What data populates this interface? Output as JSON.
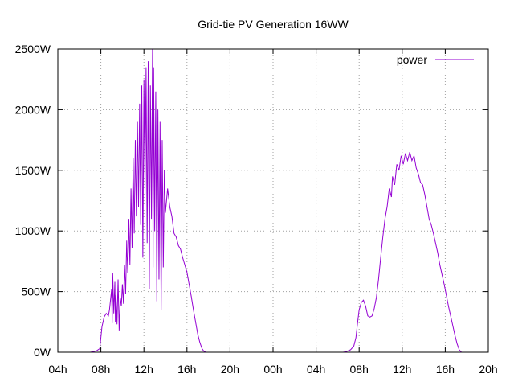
{
  "chart_data": {
    "type": "line",
    "title": "Grid-tie PV Generation 16WW",
    "xlabel": "",
    "ylabel": "",
    "x_unit": "hours",
    "xlim": [
      4,
      44
    ],
    "ylim": [
      0,
      2500
    ],
    "grid": true,
    "legend_position": "top-right",
    "color": "#9400d3",
    "x_ticks": [
      {
        "value": 4,
        "label": "04h"
      },
      {
        "value": 8,
        "label": "08h"
      },
      {
        "value": 12,
        "label": "12h"
      },
      {
        "value": 16,
        "label": "16h"
      },
      {
        "value": 20,
        "label": "20h"
      },
      {
        "value": 24,
        "label": "00h"
      },
      {
        "value": 28,
        "label": "04h"
      },
      {
        "value": 32,
        "label": "08h"
      },
      {
        "value": 36,
        "label": "12h"
      },
      {
        "value": 40,
        "label": "16h"
      },
      {
        "value": 44,
        "label": "20h"
      }
    ],
    "y_ticks": [
      {
        "value": 0,
        "label": "0W"
      },
      {
        "value": 500,
        "label": "500W"
      },
      {
        "value": 1000,
        "label": "1000W"
      },
      {
        "value": 1500,
        "label": "1500W"
      },
      {
        "value": 2000,
        "label": "2000W"
      },
      {
        "value": 2500,
        "label": "2500W"
      }
    ],
    "series": [
      {
        "name": "power",
        "points": [
          [
            7.0,
            0
          ],
          [
            7.3,
            5
          ],
          [
            7.6,
            12
          ],
          [
            7.9,
            30
          ],
          [
            8.0,
            120
          ],
          [
            8.1,
            210
          ],
          [
            8.2,
            250
          ],
          [
            8.3,
            290
          ],
          [
            8.5,
            320
          ],
          [
            8.7,
            300
          ],
          [
            8.8,
            350
          ],
          [
            9.0,
            520
          ],
          [
            9.05,
            240
          ],
          [
            9.1,
            650
          ],
          [
            9.2,
            320
          ],
          [
            9.3,
            580
          ],
          [
            9.35,
            250
          ],
          [
            9.4,
            470
          ],
          [
            9.5,
            230
          ],
          [
            9.6,
            600
          ],
          [
            9.7,
            180
          ],
          [
            9.8,
            450
          ],
          [
            9.9,
            380
          ],
          [
            10.0,
            560
          ],
          [
            10.1,
            400
          ],
          [
            10.2,
            720
          ],
          [
            10.3,
            480
          ],
          [
            10.4,
            920
          ],
          [
            10.5,
            650
          ],
          [
            10.6,
            1100
          ],
          [
            10.7,
            720
          ],
          [
            10.8,
            1350
          ],
          [
            10.9,
            860
          ],
          [
            11.0,
            1600
          ],
          [
            11.1,
            980
          ],
          [
            11.2,
            1750
          ],
          [
            11.3,
            1120
          ],
          [
            11.4,
            1900
          ],
          [
            11.5,
            1200
          ],
          [
            11.6,
            2050
          ],
          [
            11.7,
            1050
          ],
          [
            11.8,
            2200
          ],
          [
            11.9,
            780
          ],
          [
            12.0,
            2250
          ],
          [
            12.1,
            1300
          ],
          [
            12.2,
            2350
          ],
          [
            12.3,
            900
          ],
          [
            12.4,
            2400
          ],
          [
            12.5,
            520
          ],
          [
            12.6,
            2200
          ],
          [
            12.7,
            1100
          ],
          [
            12.8,
            2500
          ],
          [
            12.85,
            700
          ],
          [
            12.9,
            2350
          ],
          [
            13.0,
            1000
          ],
          [
            13.1,
            2150
          ],
          [
            13.2,
            420
          ],
          [
            13.3,
            2000
          ],
          [
            13.4,
            600
          ],
          [
            13.5,
            1900
          ],
          [
            13.6,
            350
          ],
          [
            13.7,
            1750
          ],
          [
            13.8,
            700
          ],
          [
            13.9,
            1500
          ],
          [
            14.0,
            1150
          ],
          [
            14.2,
            1350
          ],
          [
            14.4,
            1200
          ],
          [
            14.6,
            1120
          ],
          [
            14.8,
            980
          ],
          [
            15.0,
            950
          ],
          [
            15.2,
            880
          ],
          [
            15.4,
            850
          ],
          [
            15.6,
            780
          ],
          [
            15.8,
            720
          ],
          [
            16.0,
            660
          ],
          [
            16.2,
            560
          ],
          [
            16.4,
            460
          ],
          [
            16.6,
            350
          ],
          [
            16.8,
            250
          ],
          [
            17.0,
            150
          ],
          [
            17.2,
            80
          ],
          [
            17.4,
            30
          ],
          [
            17.6,
            5
          ],
          [
            17.8,
            0
          ],
          [
            30.5,
            0
          ],
          [
            30.8,
            5
          ],
          [
            31.2,
            20
          ],
          [
            31.5,
            50
          ],
          [
            31.7,
            120
          ],
          [
            31.85,
            240
          ],
          [
            32.0,
            350
          ],
          [
            32.2,
            410
          ],
          [
            32.4,
            430
          ],
          [
            32.6,
            380
          ],
          [
            32.8,
            300
          ],
          [
            33.0,
            290
          ],
          [
            33.2,
            300
          ],
          [
            33.4,
            360
          ],
          [
            33.6,
            450
          ],
          [
            33.8,
            600
          ],
          [
            34.0,
            780
          ],
          [
            34.2,
            950
          ],
          [
            34.4,
            1100
          ],
          [
            34.6,
            1200
          ],
          [
            34.8,
            1350
          ],
          [
            35.0,
            1280
          ],
          [
            35.1,
            1450
          ],
          [
            35.3,
            1380
          ],
          [
            35.5,
            1550
          ],
          [
            35.7,
            1500
          ],
          [
            35.9,
            1620
          ],
          [
            36.1,
            1550
          ],
          [
            36.3,
            1640
          ],
          [
            36.5,
            1580
          ],
          [
            36.7,
            1650
          ],
          [
            36.9,
            1580
          ],
          [
            37.1,
            1620
          ],
          [
            37.3,
            1520
          ],
          [
            37.5,
            1470
          ],
          [
            37.7,
            1400
          ],
          [
            37.9,
            1380
          ],
          [
            38.1,
            1300
          ],
          [
            38.3,
            1200
          ],
          [
            38.5,
            1100
          ],
          [
            38.7,
            1050
          ],
          [
            38.9,
            980
          ],
          [
            39.1,
            900
          ],
          [
            39.3,
            820
          ],
          [
            39.5,
            720
          ],
          [
            39.7,
            640
          ],
          [
            39.9,
            560
          ],
          [
            40.1,
            470
          ],
          [
            40.3,
            380
          ],
          [
            40.5,
            300
          ],
          [
            40.7,
            220
          ],
          [
            40.9,
            140
          ],
          [
            41.1,
            70
          ],
          [
            41.3,
            20
          ],
          [
            41.5,
            0
          ]
        ]
      }
    ]
  }
}
